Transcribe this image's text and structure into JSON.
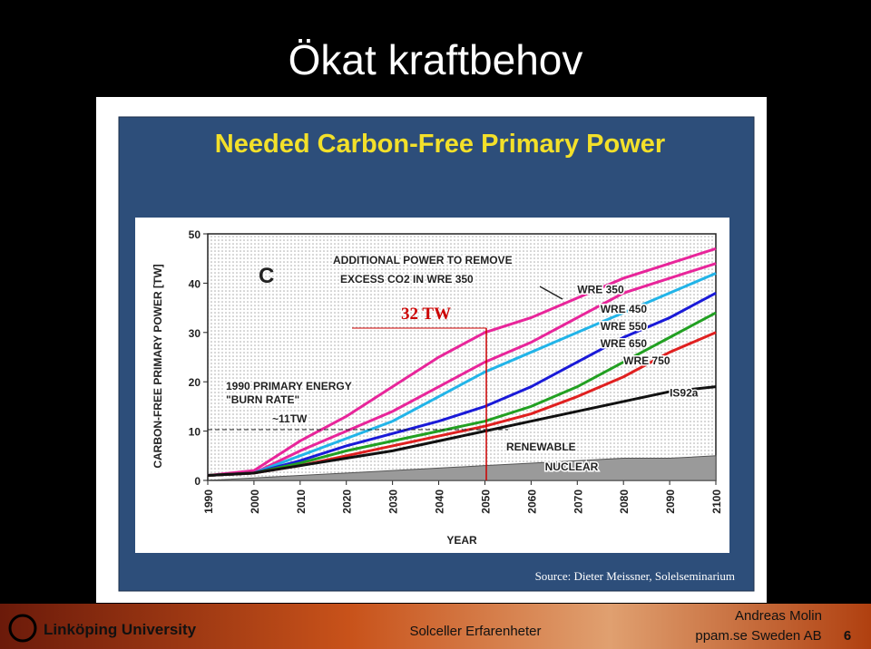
{
  "slide": {
    "title": "Ökat kraftbehov",
    "source": "Source: Dieter Meissner, Solelseminarium",
    "footer": {
      "university": "Linköping University",
      "center": "Solceller Erfarenheter",
      "author": "Andreas Molin",
      "company": "ppam.se Sweden AB",
      "page": "6"
    }
  },
  "chart_data": {
    "type": "line",
    "title": "Needed Carbon-Free Primary Power",
    "panel_label": "C",
    "x_label": "YEAR",
    "y_label": "CARBON-FREE PRIMARY POWER [TW]",
    "annotations": [
      "ADDITIONAL POWER TO REMOVE",
      "EXCESS CO2 IN WRE 350",
      "32 TW",
      "1990 PRIMARY ENERGY",
      "\"BURN RATE\"",
      "~11TW",
      "RENEWABLE"
    ],
    "x": [
      1990,
      2000,
      2010,
      2020,
      2030,
      2040,
      2050,
      2060,
      2070,
      2080,
      2090,
      2100
    ],
    "xlim": [
      1990,
      2100
    ],
    "xticks": [
      1990,
      2000,
      2010,
      2020,
      2030,
      2040,
      2050,
      2060,
      2070,
      2080,
      2090,
      2100
    ],
    "ylim": [
      0,
      50
    ],
    "yticks": [
      0,
      10,
      20,
      30,
      40,
      50
    ],
    "series": [
      {
        "color": "#e8259a",
        "values": [
          1,
          2,
          8,
          13,
          19,
          25,
          30,
          33,
          37,
          41,
          44,
          47
        ]
      },
      {
        "name": "WRE 350",
        "color": "#e8259a",
        "values": [
          1,
          1.5,
          6,
          10,
          14,
          19,
          24,
          28,
          33,
          38,
          41,
          44
        ]
      },
      {
        "name": "WRE 450",
        "color": "#22b4e8",
        "values": [
          1,
          1.5,
          5,
          8.5,
          12,
          17,
          22,
          26,
          30,
          34,
          38,
          42
        ]
      },
      {
        "name": "WRE 550",
        "color": "#1a1ad8",
        "values": [
          1,
          1.5,
          4,
          7,
          9.5,
          12,
          15,
          19,
          24,
          29,
          33,
          38
        ]
      },
      {
        "name": "WRE 650",
        "color": "#22a022",
        "values": [
          1,
          1.5,
          3.5,
          6,
          8,
          10,
          12,
          15,
          19,
          24,
          29,
          34
        ]
      },
      {
        "name": "WRE 750",
        "color": "#e02020",
        "values": [
          1,
          1.5,
          3,
          5,
          7,
          9,
          11,
          13.5,
          17,
          21,
          26,
          30
        ]
      },
      {
        "name": "IS92a",
        "color": "#111111",
        "values": [
          1,
          1.5,
          3,
          4.5,
          6,
          8,
          10,
          12,
          14,
          16,
          18,
          19
        ]
      },
      {
        "name": "NUCLEAR",
        "color": "#9a9a9a",
        "area": true,
        "values": [
          0,
          0.5,
          1,
          1.5,
          2,
          2.5,
          3,
          3.5,
          4,
          4.5,
          4.5,
          5
        ]
      }
    ]
  }
}
